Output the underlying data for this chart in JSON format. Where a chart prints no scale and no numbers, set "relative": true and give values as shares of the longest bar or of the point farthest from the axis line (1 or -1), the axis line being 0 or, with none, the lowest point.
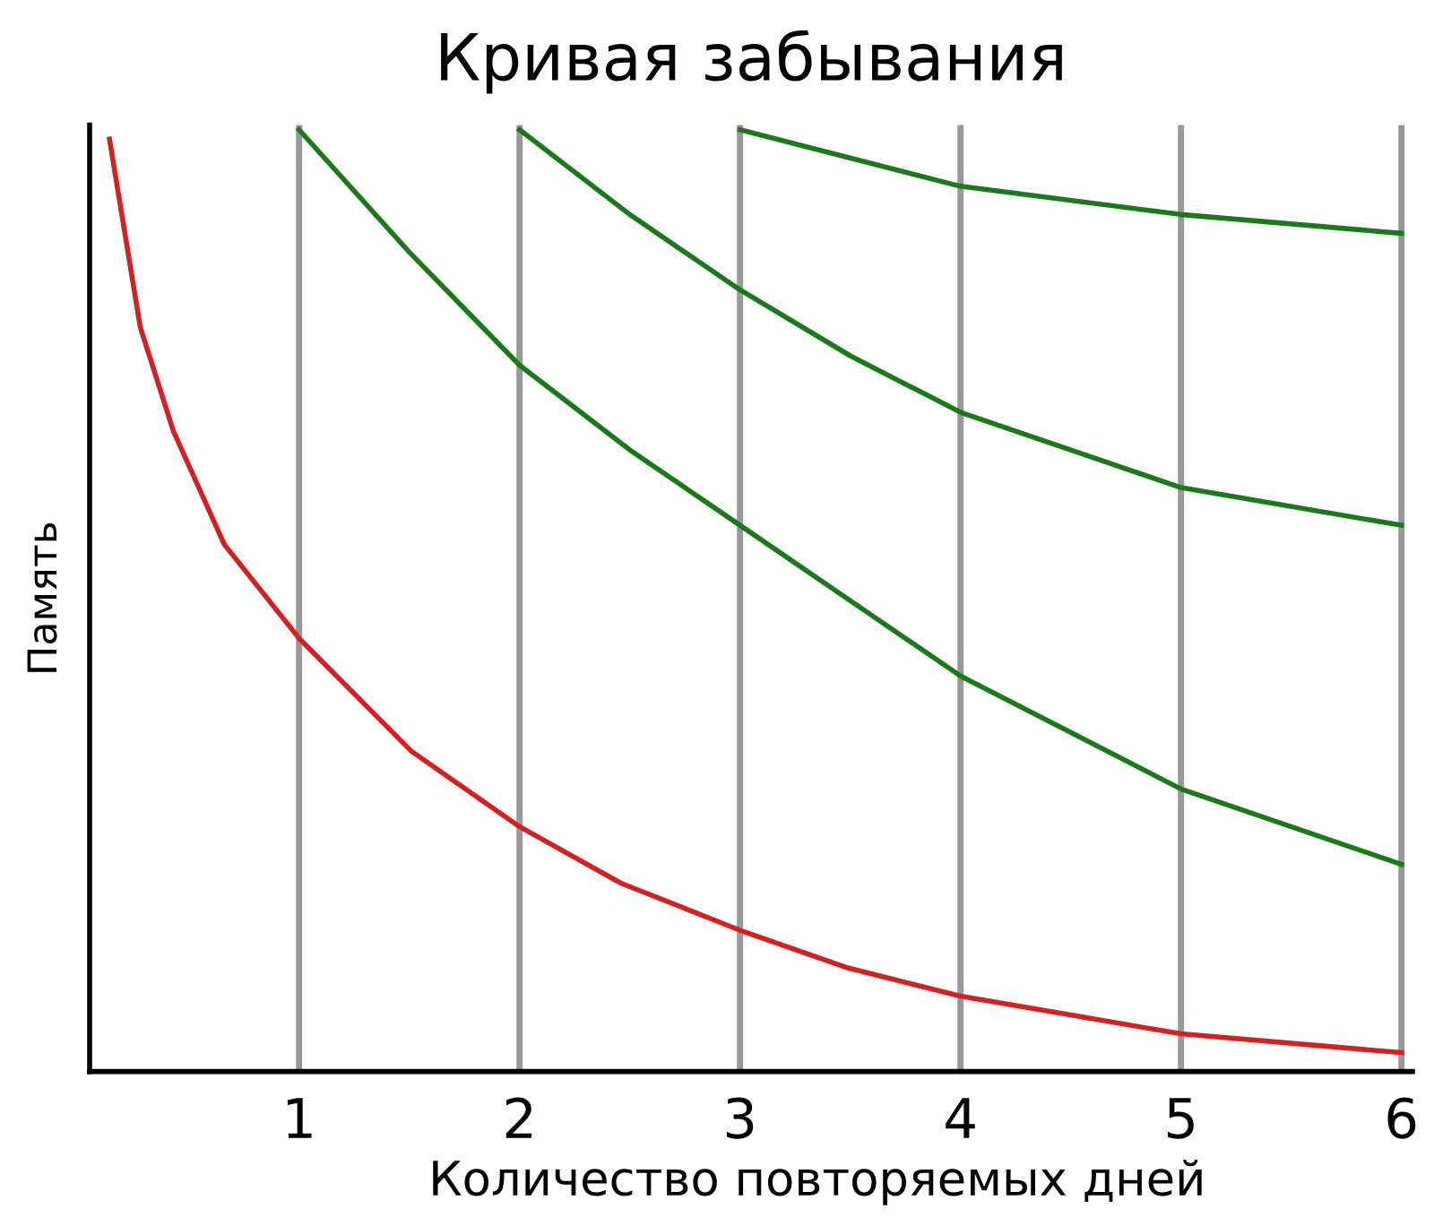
{
  "chart_data": {
    "type": "line",
    "title": "Кривая забывания",
    "xlabel": "Количество повторяемых дней",
    "ylabel": "Память",
    "relative": true,
    "xlim": [
      0.05,
      6.05
    ],
    "xticks": [
      1,
      2,
      3,
      4,
      5,
      6
    ],
    "grid": "x",
    "marker": "none",
    "line_style": "solid",
    "tick_labels": "x",
    "series": [
      {
        "color": "#d42020",
        "x": [
          0.14,
          0.28,
          0.43,
          0.66,
          1,
          1.51,
          2,
          2.46,
          3,
          3.49,
          4,
          4.5,
          5,
          6
        ],
        "values": [
          0.99,
          0.79,
          0.68,
          0.56,
          0.46,
          0.34,
          0.26,
          0.2,
          0.15,
          0.11,
          0.08,
          0.06,
          0.04,
          0.02
        ]
      },
      {
        "color": "#1a7a1a",
        "x": [
          1,
          1.5,
          2,
          2.5,
          3,
          3.5,
          4,
          4.5,
          5,
          6
        ],
        "values": [
          1.0,
          0.87,
          0.75,
          0.66,
          0.58,
          0.5,
          0.42,
          0.36,
          0.3,
          0.22
        ]
      },
      {
        "color": "#1a7a1a",
        "x": [
          2,
          2.5,
          3,
          3.5,
          4,
          5,
          6
        ],
        "values": [
          1.0,
          0.91,
          0.83,
          0.76,
          0.7,
          0.62,
          0.58
        ]
      },
      {
        "color": "#1a7a1a",
        "x": [
          3,
          4,
          5,
          6
        ],
        "values": [
          1.0,
          0.94,
          0.91,
          0.89
        ]
      }
    ]
  }
}
